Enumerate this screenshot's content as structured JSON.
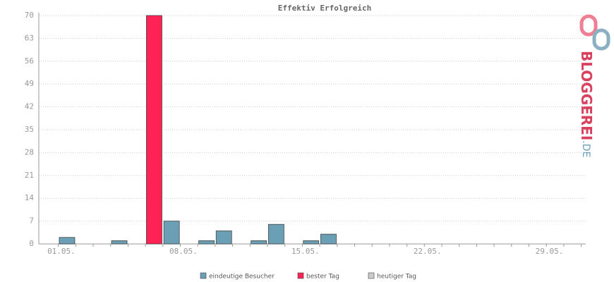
{
  "chart_data": {
    "type": "bar",
    "title": "Effektiv Erfolgreich",
    "categories": [
      "01.05.",
      null,
      null,
      null,
      null,
      null,
      null,
      "08.05.",
      null,
      null,
      null,
      null,
      null,
      null,
      "15.05.",
      null,
      null,
      null,
      null,
      null,
      null,
      "22.05.",
      null,
      null,
      null,
      null,
      null,
      null,
      "29.05.",
      null,
      null
    ],
    "series": [
      {
        "name": "eindeutige Besucher",
        "color": "#6a9fb5",
        "values": [
          2,
          0,
          0,
          1,
          0,
          null,
          7,
          0,
          1,
          4,
          0,
          1,
          6,
          0,
          1,
          3,
          0,
          0,
          0,
          0,
          0,
          0,
          0,
          0,
          0,
          0,
          0,
          0,
          0,
          0,
          0
        ]
      },
      {
        "name": "bester Tag",
        "color": "#ff2255",
        "values": [
          null,
          null,
          null,
          null,
          null,
          70,
          null,
          null,
          null,
          null,
          null,
          null,
          null,
          null,
          null,
          null,
          null,
          null,
          null,
          null,
          null,
          null,
          null,
          null,
          null,
          null,
          null,
          null,
          null,
          null,
          null
        ]
      },
      {
        "name": "heutiger Tag",
        "color": "#cccccc",
        "values": [
          null,
          null,
          null,
          null,
          null,
          null,
          null,
          null,
          null,
          null,
          null,
          null,
          null,
          null,
          null,
          null,
          null,
          null,
          null,
          null,
          null,
          null,
          null,
          null,
          null,
          null,
          null,
          null,
          null,
          null,
          null
        ]
      }
    ],
    "ylim": [
      0,
      70
    ],
    "yticks": [
      0,
      7,
      14,
      21,
      28,
      35,
      42,
      49,
      56,
      63,
      70
    ],
    "grid": true,
    "logo": {
      "main": "BLOGGEREI",
      "suffix": ".DE"
    }
  }
}
